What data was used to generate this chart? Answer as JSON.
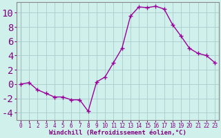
{
  "x": [
    0,
    1,
    2,
    3,
    4,
    5,
    6,
    7,
    8,
    9,
    10,
    11,
    12,
    13,
    14,
    15,
    16,
    17,
    18,
    19,
    20,
    21,
    22,
    23
  ],
  "y": [
    0,
    0.2,
    -0.8,
    -1.3,
    -1.8,
    -1.8,
    -2.2,
    -2.2,
    -3.8,
    0.3,
    1.0,
    3.0,
    5.0,
    9.5,
    10.8,
    10.7,
    10.9,
    10.5,
    8.3,
    6.7,
    5.0,
    4.3,
    4.0,
    3.0
  ],
  "line_color": "#990099",
  "marker": "+",
  "markersize": 4,
  "markeredgewidth": 1.0,
  "linewidth": 1.0,
  "background_color": "#cff0eb",
  "grid_color": "#aacccc",
  "xlabel": "Windchill (Refroidissement éolien,°C)",
  "xlabel_color": "#800080",
  "xlabel_fontsize": 6.5,
  "tick_color": "#800080",
  "tick_fontsize": 5.5,
  "yticks": [
    -4,
    -2,
    0,
    2,
    4,
    6,
    8,
    10
  ],
  "ylim": [
    -5.0,
    11.5
  ],
  "xlim": [
    -0.5,
    23.5
  ],
  "xticks": [
    0,
    1,
    2,
    3,
    4,
    5,
    6,
    7,
    8,
    9,
    10,
    11,
    12,
    13,
    14,
    15,
    16,
    17,
    18,
    19,
    20,
    21,
    22,
    23
  ]
}
